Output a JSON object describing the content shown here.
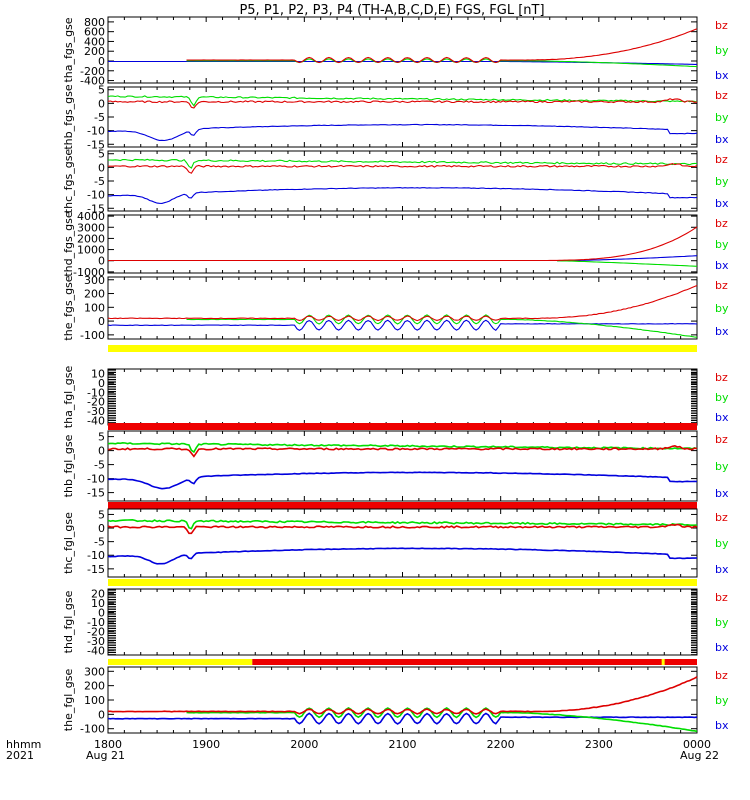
{
  "title": "P5, P1, P2, P3, P4 (TH-A,B,C,D,E) FGS, FGL [nT]",
  "footer": {
    "hhmm": "hhmm",
    "year": "2021",
    "date_start": "Aug 21",
    "date_end": "Aug 22"
  },
  "colors": {
    "bz": "#dd0000",
    "by": "#00dd00",
    "bx": "#0000dd",
    "bar_yellow": "#ffff00",
    "bar_red": "#ee0000"
  },
  "chart_data": {
    "type": "line",
    "x_ticks": [
      "1800",
      "1900",
      "2000",
      "2100",
      "2200",
      "2300",
      "0000"
    ],
    "xlim": [
      "2021-08-21 18:00",
      "2021-08-22 00:00"
    ],
    "legend": [
      "bz",
      "by",
      "bx"
    ],
    "panels": [
      {
        "ylabel": "tha_fgs_gse",
        "yticks": [
          800,
          600,
          400,
          200,
          0,
          -200,
          -400
        ],
        "ylim": [
          -450,
          900
        ],
        "style": "tha"
      },
      {
        "ylabel": "thb_fgs_gse",
        "yticks": [
          5,
          0,
          -5,
          -10,
          -15
        ],
        "ylim": [
          -16,
          6
        ],
        "style": "thb"
      },
      {
        "ylabel": "thc_fgs_gse",
        "yticks": [
          5,
          0,
          -5,
          -10,
          -15
        ],
        "ylim": [
          -16,
          6
        ],
        "style": "thc"
      },
      {
        "ylabel": "thd_fgs_gse",
        "yticks": [
          4000,
          3000,
          2000,
          1000,
          0,
          -1000
        ],
        "ylim": [
          -1100,
          4100
        ],
        "style": "thd"
      },
      {
        "ylabel": "the_fgs_gse",
        "yticks": [
          300,
          200,
          100,
          0,
          -100
        ],
        "ylim": [
          -130,
          320
        ],
        "style": "the"
      },
      {
        "ylabel": "tha_fgl_gse",
        "yticks": [
          10,
          0,
          -10,
          -20,
          -30,
          -40
        ],
        "ylim": [
          -45,
          15
        ],
        "style": "empty",
        "bar": "yellow"
      },
      {
        "ylabel": "thb_fgl_gse",
        "yticks": [
          5,
          0,
          -5,
          -10,
          -15
        ],
        "ylim": [
          -18,
          7
        ],
        "style": "thb",
        "bar": "red"
      },
      {
        "ylabel": "thc_fgl_gse",
        "yticks": [
          5,
          0,
          -5,
          -10,
          -15
        ],
        "ylim": [
          -18,
          7
        ],
        "style": "thc",
        "bar": "red"
      },
      {
        "ylabel": "thd_fgl_gse",
        "yticks": [
          20,
          10,
          0,
          -10,
          -20,
          -30,
          -40
        ],
        "ylim": [
          -45,
          25
        ],
        "style": "empty",
        "bar": "yellow"
      },
      {
        "ylabel": "the_fgl_gse",
        "yticks": [
          300,
          200,
          100,
          0,
          -100
        ],
        "ylim": [
          -130,
          330
        ],
        "style": "the",
        "bar": "mixed"
      }
    ]
  }
}
